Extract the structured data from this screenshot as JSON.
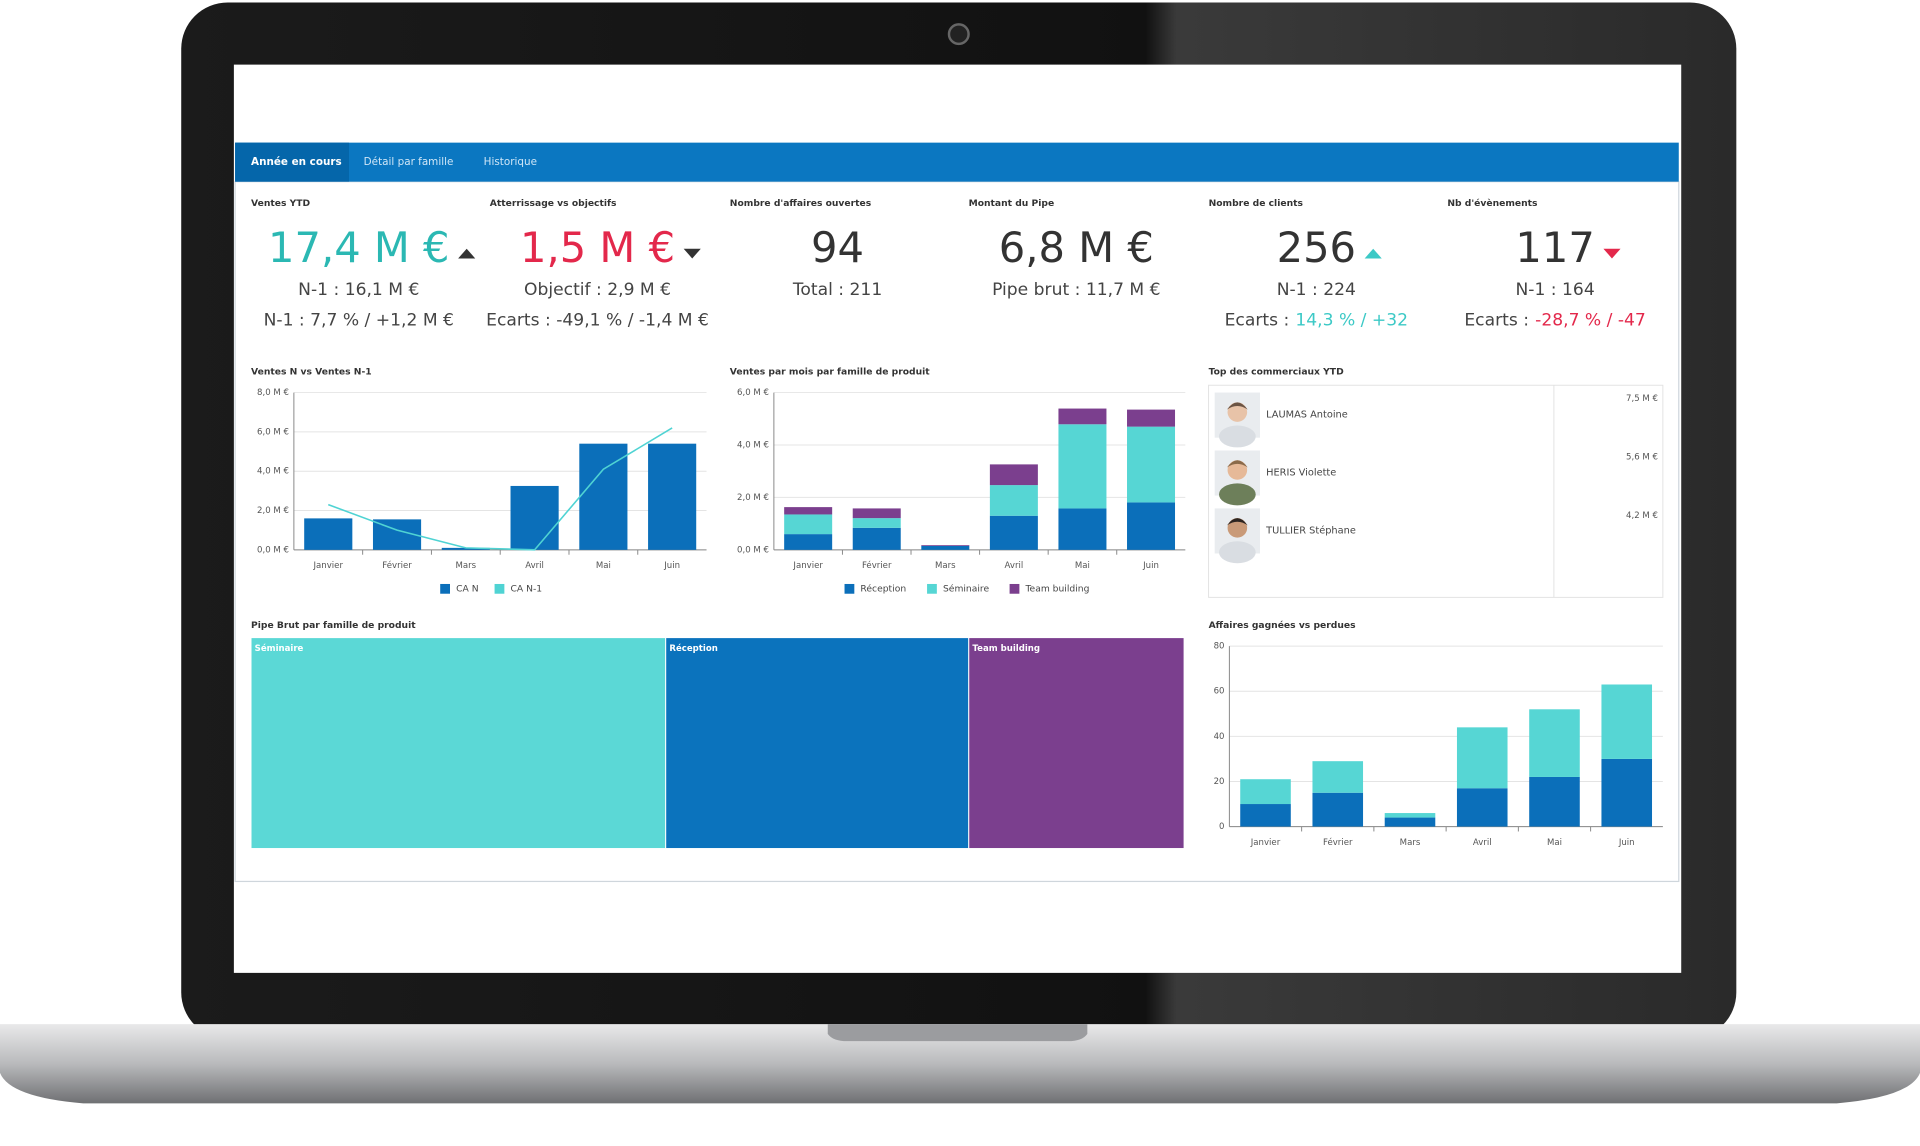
{
  "tabs": [
    "Année en cours",
    "Détail par famille",
    "Historique"
  ],
  "kpis": [
    {
      "title": "Ventes YTD",
      "value": "17,4 M €",
      "value_color": "#2bb8b3",
      "trend": "up",
      "trend_color": "#333333",
      "lines": [
        "N-1 : 16,1 M €",
        "N-1 : 7,7 % / +1,2 M €"
      ]
    },
    {
      "title": "Atterrissage vs objectifs",
      "value": "1,5 M €",
      "value_color": "#e3284b",
      "trend": "down",
      "trend_color": "#333333",
      "lines": [
        "Objectif : 2,9 M €",
        "Ecarts : -49,1 % / -1,4 M €"
      ]
    },
    {
      "title": "Nombre d'affaires ouvertes",
      "value": "94",
      "value_color": "#333333",
      "lines": [
        "Total : 211"
      ]
    },
    {
      "title": "Montant du Pipe",
      "value": "6,8 M €",
      "value_color": "#333333",
      "lines": [
        "Pipe brut : 11,7 M €"
      ]
    },
    {
      "title": "Nombre de clients",
      "value": "256",
      "value_color": "#333333",
      "trend": "up",
      "trend_color": "#3cc9c6",
      "lines": [
        "N-1 : 224",
        {
          "label": "Ecarts :",
          "value": "14,3 % / +32",
          "color": "#3cc9c6"
        }
      ]
    },
    {
      "title": "Nb d'évènements",
      "value": "117",
      "value_color": "#333333",
      "trend": "down",
      "trend_color": "#e3284b",
      "lines": [
        "N-1 : 164",
        {
          "label": "Ecarts :",
          "value": "-28,7 % / -47",
          "color": "#e3284b"
        }
      ]
    }
  ],
  "chart_data": [
    {
      "type": "bar",
      "title": "Ventes N vs Ventes N-1",
      "categories": [
        "Janvier",
        "Février",
        "Mars",
        "Avril",
        "Mai",
        "Juin"
      ],
      "series": [
        {
          "name": "CA N",
          "color": "#0b6fba",
          "kind": "bar",
          "values": [
            1.6,
            1.55,
            0.1,
            3.25,
            5.4,
            5.4
          ]
        },
        {
          "name": "CA N-1",
          "color": "#4fd3d3",
          "kind": "line",
          "values": [
            2.3,
            1.0,
            0.1,
            0.0,
            4.1,
            6.2
          ]
        }
      ],
      "ylim": [
        0,
        8
      ],
      "yticks": [
        {
          "value": 0,
          "label": "0,0 M €"
        },
        {
          "value": 2,
          "label": "2,0 M €"
        },
        {
          "value": 4,
          "label": "4,0 M €"
        },
        {
          "value": 6,
          "label": "6,0 M €"
        },
        {
          "value": 8,
          "label": "8,0 M €"
        }
      ],
      "grid": true,
      "legend": "bottom"
    },
    {
      "type": "stacked",
      "title": "Ventes par mois par famille de produit",
      "categories": [
        "Janvier",
        "Février",
        "Mars",
        "Avril",
        "Mai",
        "Juin"
      ],
      "series": [
        {
          "name": "Réception",
          "color": "#0b6fba",
          "values": [
            0.6,
            0.84,
            0.15,
            1.3,
            1.58,
            1.81
          ]
        },
        {
          "name": "Séminaire",
          "color": "#56d6d4",
          "values": [
            0.75,
            0.37,
            0,
            1.17,
            3.21,
            2.89
          ]
        },
        {
          "name": "Team building",
          "color": "#7b3f8e",
          "values": [
            0.28,
            0.37,
            0.03,
            0.79,
            0.6,
            0.65
          ]
        }
      ],
      "ylim": [
        0,
        6
      ],
      "yticks": [
        {
          "value": 0,
          "label": "0,0 M €"
        },
        {
          "value": 2,
          "label": "2,0 M €"
        },
        {
          "value": 4,
          "label": "4,0 M €"
        },
        {
          "value": 6,
          "label": "6,0 M €"
        }
      ],
      "grid": true,
      "legend": "bottom"
    },
    {
      "type": "treemap",
      "title": "Pipe Brut par famille de produit",
      "categories": [
        "Séminaire",
        "Réception",
        "Team building"
      ],
      "values": [
        5.2,
        3.8,
        2.7
      ],
      "colors": [
        "#5bd8d6",
        "#0b73bd",
        "#7b3f8e"
      ]
    },
    {
      "type": "stacked",
      "title": "Affaires gagnées vs perdues",
      "categories": [
        "Janvier",
        "Février",
        "Mars",
        "Avril",
        "Mai",
        "Juin"
      ],
      "series": [
        {
          "color": "#0b6fba",
          "values": [
            10,
            15,
            4,
            17,
            22,
            30
          ]
        },
        {
          "color": "#56d6d4",
          "values": [
            11,
            14,
            2,
            27,
            30,
            33
          ]
        }
      ],
      "ylim": [
        0,
        80
      ],
      "yticks": [
        0,
        20,
        40,
        60,
        80
      ],
      "grid": true
    }
  ],
  "top_sales": {
    "title": "Top des commerciaux YTD",
    "rows": [
      {
        "name": "LAUMAS Antoine",
        "value": "7,5 M €"
      },
      {
        "name": "HERIS Violette",
        "value": "5,6 M €"
      },
      {
        "name": "TULLIER Stéphane",
        "value": "4,2 M €"
      }
    ]
  }
}
